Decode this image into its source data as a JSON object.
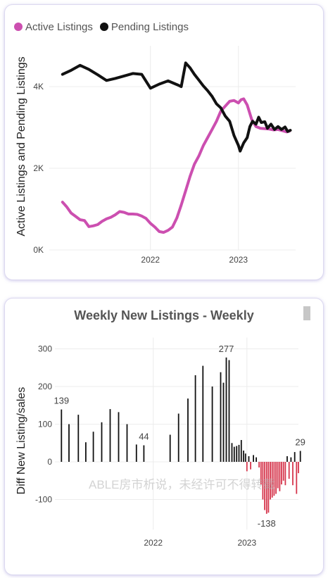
{
  "chart_data": [
    {
      "type": "line",
      "xlabel": "",
      "ylabel": "Active Listings and Pending Listings",
      "ylim": [
        0,
        5000
      ],
      "y_ticks": [
        {
          "v": 0,
          "label": "0K"
        },
        {
          "v": 2000,
          "label": "2K"
        },
        {
          "v": 4000,
          "label": "4K"
        }
      ],
      "x_ticks": [
        {
          "v": 2022,
          "label": "2022"
        },
        {
          "v": 2023,
          "label": "2023"
        }
      ],
      "xlim": [
        2020.85,
        2023.65
      ],
      "grid": true,
      "legend_position": "top-left",
      "series": [
        {
          "name": "Active Listings",
          "color": "#cc4fb0",
          "points": [
            [
              2021.0,
              1170
            ],
            [
              2021.05,
              1050
            ],
            [
              2021.1,
              900
            ],
            [
              2021.15,
              820
            ],
            [
              2021.2,
              740
            ],
            [
              2021.25,
              720
            ],
            [
              2021.3,
              570
            ],
            [
              2021.35,
              590
            ],
            [
              2021.4,
              620
            ],
            [
              2021.45,
              700
            ],
            [
              2021.5,
              760
            ],
            [
              2021.55,
              800
            ],
            [
              2021.6,
              860
            ],
            [
              2021.65,
              940
            ],
            [
              2021.7,
              920
            ],
            [
              2021.75,
              880
            ],
            [
              2021.8,
              880
            ],
            [
              2021.85,
              870
            ],
            [
              2021.9,
              830
            ],
            [
              2021.95,
              770
            ],
            [
              2022.0,
              650
            ],
            [
              2022.05,
              560
            ],
            [
              2022.1,
              450
            ],
            [
              2022.15,
              430
            ],
            [
              2022.2,
              480
            ],
            [
              2022.25,
              560
            ],
            [
              2022.3,
              780
            ],
            [
              2022.35,
              1100
            ],
            [
              2022.4,
              1450
            ],
            [
              2022.45,
              1800
            ],
            [
              2022.5,
              2100
            ],
            [
              2022.55,
              2300
            ],
            [
              2022.6,
              2550
            ],
            [
              2022.65,
              2750
            ],
            [
              2022.7,
              2950
            ],
            [
              2022.75,
              3150
            ],
            [
              2022.8,
              3400
            ],
            [
              2022.85,
              3520
            ],
            [
              2022.9,
              3640
            ],
            [
              2022.95,
              3660
            ],
            [
              2023.0,
              3600
            ],
            [
              2023.03,
              3680
            ],
            [
              2023.06,
              3700
            ],
            [
              2023.1,
              3550
            ],
            [
              2023.15,
              3200
            ],
            [
              2023.2,
              3020
            ],
            [
              2023.25,
              2980
            ],
            [
              2023.3,
              2970
            ],
            [
              2023.35,
              2960
            ],
            [
              2023.4,
              2940
            ],
            [
              2023.45,
              2950
            ],
            [
              2023.5,
              2920
            ],
            [
              2023.55,
              2890
            ],
            [
              2023.58,
              2910
            ]
          ]
        },
        {
          "name": "Pending Listings",
          "color": "#111111",
          "points": [
            [
              2021.0,
              4300
            ],
            [
              2021.1,
              4400
            ],
            [
              2021.2,
              4520
            ],
            [
              2021.3,
              4420
            ],
            [
              2021.4,
              4290
            ],
            [
              2021.5,
              4150
            ],
            [
              2021.6,
              4200
            ],
            [
              2021.7,
              4260
            ],
            [
              2021.8,
              4320
            ],
            [
              2021.9,
              4300
            ],
            [
              2022.0,
              3960
            ],
            [
              2022.1,
              4060
            ],
            [
              2022.2,
              4140
            ],
            [
              2022.3,
              4050
            ],
            [
              2022.35,
              4000
            ],
            [
              2022.4,
              4580
            ],
            [
              2022.45,
              4460
            ],
            [
              2022.5,
              4300
            ],
            [
              2022.55,
              4160
            ],
            [
              2022.6,
              4020
            ],
            [
              2022.65,
              3900
            ],
            [
              2022.7,
              3760
            ],
            [
              2022.75,
              3580
            ],
            [
              2022.8,
              3480
            ],
            [
              2022.85,
              3280
            ],
            [
              2022.9,
              3150
            ],
            [
              2022.95,
              2800
            ],
            [
              2023.0,
              2560
            ],
            [
              2023.02,
              2420
            ],
            [
              2023.06,
              2620
            ],
            [
              2023.1,
              2750
            ],
            [
              2023.13,
              3020
            ],
            [
              2023.16,
              3150
            ],
            [
              2023.2,
              3080
            ],
            [
              2023.23,
              3250
            ],
            [
              2023.26,
              3120
            ],
            [
              2023.3,
              3140
            ],
            [
              2023.33,
              2980
            ],
            [
              2023.37,
              3080
            ],
            [
              2023.41,
              2950
            ],
            [
              2023.45,
              3020
            ],
            [
              2023.49,
              2950
            ],
            [
              2023.53,
              3010
            ],
            [
              2023.56,
              2900
            ],
            [
              2023.59,
              2930
            ]
          ]
        }
      ]
    },
    {
      "type": "bar",
      "title": "Weekly New Listings - Weekly",
      "xlabel": "",
      "ylabel": "Diff New Listing/sales",
      "ylim": [
        -180,
        330
      ],
      "y_ticks": [
        -100,
        0,
        100,
        200,
        300
      ],
      "x_ticks": [
        {
          "v": 2022,
          "label": "2022"
        },
        {
          "v": 2023,
          "label": "2023"
        }
      ],
      "xlim": [
        2020.95,
        2023.55
      ],
      "grid": true,
      "positive_color": "#111111",
      "negative_color": "#d6364c",
      "points": [
        [
          2021.02,
          139
        ],
        [
          2021.1,
          100
        ],
        [
          2021.2,
          125
        ],
        [
          2021.28,
          52
        ],
        [
          2021.36,
          80
        ],
        [
          2021.45,
          105
        ],
        [
          2021.54,
          140
        ],
        [
          2021.63,
          132
        ],
        [
          2021.72,
          100
        ],
        [
          2021.82,
          46
        ],
        [
          2021.9,
          44
        ],
        [
          2022.18,
          72
        ],
        [
          2022.27,
          128
        ],
        [
          2022.37,
          168
        ],
        [
          2022.45,
          230
        ],
        [
          2022.53,
          255
        ],
        [
          2022.63,
          200
        ],
        [
          2022.72,
          238
        ],
        [
          2022.75,
          210
        ],
        [
          2022.78,
          277
        ],
        [
          2022.81,
          270
        ],
        [
          2022.84,
          50
        ],
        [
          2022.865,
          40
        ],
        [
          2022.89,
          42
        ],
        [
          2022.915,
          45
        ],
        [
          2022.94,
          58
        ],
        [
          2022.965,
          30
        ],
        [
          2022.985,
          22
        ],
        [
          2023.0,
          -25
        ],
        [
          2023.02,
          15
        ],
        [
          2023.04,
          -20
        ],
        [
          2023.07,
          18
        ],
        [
          2023.1,
          12
        ],
        [
          2023.13,
          -15
        ],
        [
          2023.15,
          -60
        ],
        [
          2023.17,
          -100
        ],
        [
          2023.19,
          -128
        ],
        [
          2023.21,
          -138
        ],
        [
          2023.23,
          -135
        ],
        [
          2023.25,
          -100
        ],
        [
          2023.27,
          -95
        ],
        [
          2023.29,
          -90
        ],
        [
          2023.31,
          -85
        ],
        [
          2023.33,
          -70
        ],
        [
          2023.35,
          -78
        ],
        [
          2023.37,
          -60
        ],
        [
          2023.39,
          -50
        ],
        [
          2023.41,
          -62
        ],
        [
          2023.43,
          15
        ],
        [
          2023.45,
          -45
        ],
        [
          2023.47,
          12
        ],
        [
          2023.49,
          -62
        ],
        [
          2023.51,
          26
        ],
        [
          2023.53,
          -85
        ],
        [
          2023.55,
          -30
        ],
        [
          2023.57,
          29
        ]
      ],
      "data_labels": [
        {
          "x": 2021.02,
          "y": 139,
          "label": "139",
          "pos": "above"
        },
        {
          "x": 2021.9,
          "y": 44,
          "label": "44",
          "pos": "above"
        },
        {
          "x": 2022.78,
          "y": 277,
          "label": "277",
          "pos": "above"
        },
        {
          "x": 2023.21,
          "y": -138,
          "label": "-138",
          "pos": "below"
        },
        {
          "x": 2023.57,
          "y": 29,
          "label": "29",
          "pos": "above"
        }
      ]
    }
  ],
  "watermark": "ABLE房市析说，未经许可不得转载"
}
